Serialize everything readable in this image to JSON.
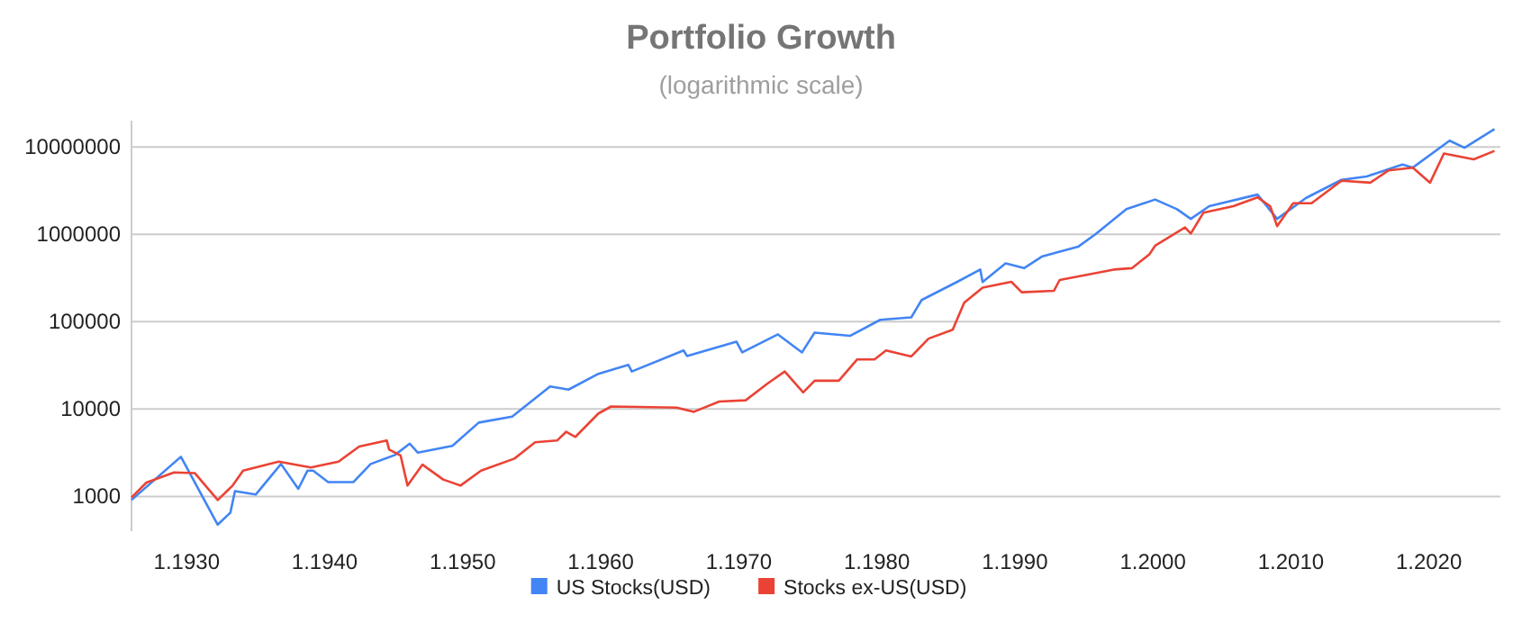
{
  "chart_data": {
    "type": "line",
    "title": "Portfolio Growth",
    "subtitle": "(logarithmic scale)",
    "log": true,
    "grid": "y",
    "legend": "bottom",
    "xlim": [
      "1926-01",
      "2024-12"
    ],
    "xticks": [
      {
        "value": "1930-01",
        "label": "1.1930"
      },
      {
        "value": "1940-01",
        "label": "1.1940"
      },
      {
        "value": "1950-01",
        "label": "1.1950"
      },
      {
        "value": "1960-01",
        "label": "1.1960"
      },
      {
        "value": "1970-01",
        "label": "1.1970"
      },
      {
        "value": "1980-01",
        "label": "1.1980"
      },
      {
        "value": "1990-01",
        "label": "1.1990"
      },
      {
        "value": "2000-01",
        "label": "1.2000"
      },
      {
        "value": "2010-01",
        "label": "1.2010"
      },
      {
        "value": "2020-01",
        "label": "1.2020"
      }
    ],
    "ylim": [
      400,
      20000000
    ],
    "yticks": [
      1000,
      10000,
      100000,
      1000000,
      10000000
    ],
    "series": [
      {
        "name": "US Stocks(USD)",
        "color": "#4285f4",
        "x": [
          "1926-01",
          "1929-08",
          "1932-04",
          "1933-03",
          "1933-07",
          "1935-01",
          "1936-11",
          "1938-02",
          "1938-10",
          "1939-03",
          "1940-04",
          "1942-02",
          "1943-05",
          "1945-02",
          "1946-03",
          "1946-10",
          "1949-04",
          "1951-03",
          "1953-08",
          "1956-05",
          "1957-09",
          "1959-11",
          "1962-01",
          "1962-04",
          "1966-01",
          "1966-04",
          "1969-11",
          "1970-04",
          "1972-11",
          "1974-08",
          "1975-07",
          "1978-02",
          "1980-04",
          "1982-07",
          "1983-04",
          "1985-11",
          "1987-07",
          "1987-09",
          "1989-05",
          "1990-09",
          "1992-01",
          "1994-08",
          "1995-11",
          "1998-02",
          "2000-03",
          "2001-10",
          "2002-10",
          "2004-02",
          "2007-08",
          "2009-01",
          "2011-02",
          "2013-09",
          "2015-07",
          "2018-02",
          "2018-11",
          "2021-07",
          "2022-08",
          "2024-10"
        ],
        "values": [
          910,
          2840,
          475,
          650,
          1150,
          1050,
          2350,
          1220,
          1970,
          1970,
          1460,
          1460,
          2350,
          2980,
          4020,
          3170,
          3780,
          7000,
          8200,
          18100,
          16700,
          25300,
          32000,
          26900,
          46800,
          40500,
          59000,
          44500,
          71500,
          44500,
          75000,
          69000,
          105000,
          112000,
          177000,
          286000,
          395000,
          285000,
          465000,
          410000,
          560000,
          720000,
          1000000,
          1940000,
          2500000,
          1940000,
          1500000,
          2100000,
          2850000,
          1500000,
          2600000,
          4200000,
          4600000,
          6300000,
          5800000,
          11800000,
          9800000,
          16000000
        ]
      },
      {
        "name": "Stocks ex-US(USD)",
        "color": "#ea4335",
        "x": [
          "1926-01",
          "1927-02",
          "1929-02",
          "1930-08",
          "1932-04",
          "1933-05",
          "1934-02",
          "1936-09",
          "1939-01",
          "1941-01",
          "1942-07",
          "1944-07",
          "1944-09",
          "1945-07",
          "1946-01",
          "1947-02",
          "1948-08",
          "1949-11",
          "1951-05",
          "1953-10",
          "1955-04",
          "1956-11",
          "1957-07",
          "1958-03",
          "1959-11",
          "1960-10",
          "1965-07",
          "1966-10",
          "1968-08",
          "1970-07",
          "1972-02",
          "1973-05",
          "1974-09",
          "1975-07",
          "1977-04",
          "1978-08",
          "1979-11",
          "1980-09",
          "1982-07",
          "1983-10",
          "1985-07",
          "1986-05",
          "1987-09",
          "1989-10",
          "1990-07",
          "1992-11",
          "1993-04",
          "1997-03",
          "1998-07",
          "1999-10",
          "2000-03",
          "2002-05",
          "2002-10",
          "2003-09",
          "2005-11",
          "2007-08",
          "2008-07",
          "2009-01",
          "2010-03",
          "2011-07",
          "2013-09",
          "2015-10",
          "2017-02",
          "2018-11",
          "2020-02",
          "2021-02",
          "2023-04",
          "2024-10"
        ],
        "values": [
          970,
          1440,
          1880,
          1850,
          910,
          1330,
          1970,
          2500,
          2140,
          2500,
          3720,
          4360,
          3440,
          2940,
          1330,
          2310,
          1560,
          1330,
          1970,
          2710,
          4160,
          4360,
          5500,
          4800,
          8900,
          10700,
          10400,
          9300,
          12200,
          12600,
          19600,
          26900,
          15500,
          21100,
          21100,
          37000,
          37000,
          46800,
          40000,
          64000,
          81000,
          165000,
          245000,
          286000,
          217000,
          226000,
          300000,
          395000,
          410000,
          590000,
          740000,
          1200000,
          1020000,
          1770000,
          2100000,
          2650000,
          2100000,
          1240000,
          2270000,
          2270000,
          4100000,
          3900000,
          5400000,
          5800000,
          3900000,
          8400000,
          7200000,
          9000000
        ]
      }
    ]
  }
}
